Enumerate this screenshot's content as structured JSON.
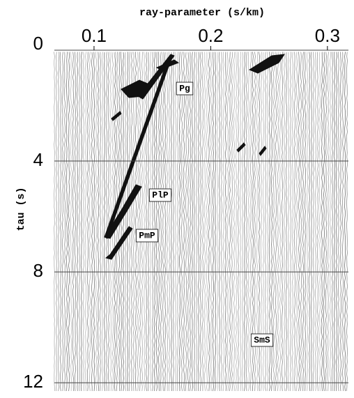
{
  "chart_data": {
    "type": "seismogram",
    "title": "ray-parameter (s/km)",
    "y_label": "tau (s)",
    "xlim": [
      0.066,
      0.318
    ],
    "xticks": [
      0.1,
      0.2,
      0.3
    ],
    "ylim": [
      0,
      12.4
    ],
    "yticks": [
      0,
      4,
      8,
      12
    ],
    "grid": true,
    "annotations": [
      "Pg",
      "PlP",
      "PmP",
      "SmS"
    ]
  }
}
